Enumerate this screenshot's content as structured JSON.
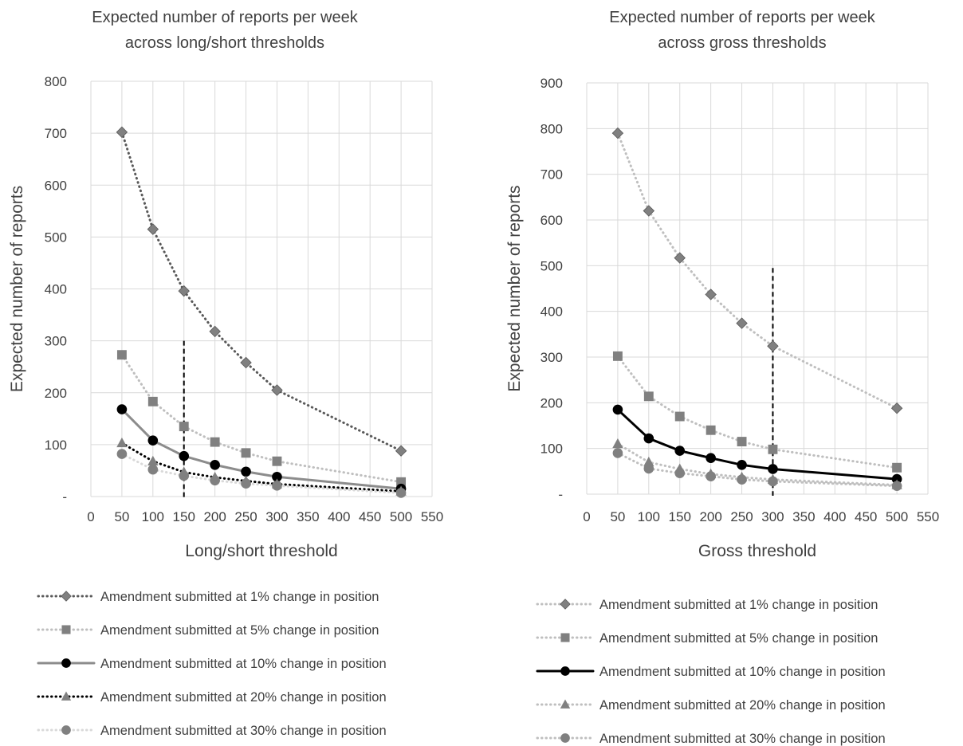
{
  "chart_data": [
    {
      "type": "line",
      "title_lines": [
        "Expected number of reports per week",
        "across long/short thresholds"
      ],
      "xlabel": "Long/short threshold",
      "ylabel": "Expected number of reports",
      "xlim": [
        0,
        550
      ],
      "ylim": [
        0,
        800
      ],
      "x_ticks": [
        0,
        50,
        100,
        150,
        200,
        250,
        300,
        350,
        400,
        450,
        500,
        550
      ],
      "y_ticks": [
        0,
        100,
        200,
        300,
        400,
        500,
        600,
        700,
        800
      ],
      "y_tick_labels": [
        "-",
        "100",
        "200",
        "300",
        "400",
        "500",
        "600",
        "700",
        "800"
      ],
      "grid": true,
      "reference_line": {
        "x": 150,
        "y_max": 300,
        "style": "dashed"
      },
      "x": [
        50,
        100,
        150,
        200,
        250,
        300,
        500
      ],
      "series": [
        {
          "name": "Amendment submitted at 1% change in position",
          "values": [
            702,
            515,
            396,
            318,
            258,
            205,
            88
          ],
          "marker": "diamond",
          "line": "dotted",
          "color": "#595959",
          "marker_color": "#808080"
        },
        {
          "name": "Amendment submitted at 5% change in position",
          "values": [
            273,
            183,
            135,
            105,
            84,
            68,
            28
          ],
          "marker": "square",
          "line": "dotted",
          "color": "#bfbfbf",
          "marker_color": "#808080"
        },
        {
          "name": "Amendment submitted at 10% change in position",
          "values": [
            168,
            108,
            78,
            61,
            48,
            38,
            15
          ],
          "marker": "circle",
          "line": "solid",
          "color": "#8c8c8c",
          "marker_color": "#000000"
        },
        {
          "name": "Amendment submitted at 20% change in position",
          "values": [
            103,
            68,
            47,
            37,
            30,
            24,
            10
          ],
          "marker": "triangle",
          "line": "dotted",
          "color": "#000000",
          "marker_color": "#808080"
        },
        {
          "name": "Amendment submitted at 30% change in position",
          "values": [
            82,
            52,
            40,
            31,
            25,
            21,
            7
          ],
          "marker": "circle",
          "line": "dotted",
          "color": "#d9d9d9",
          "marker_color": "#808080"
        }
      ],
      "legend_position": "bottom"
    },
    {
      "type": "line",
      "title_lines": [
        "Expected number of reports per week",
        "across gross thresholds"
      ],
      "xlabel": "Gross threshold",
      "ylabel": "Expected number of reports",
      "xlim": [
        0,
        550
      ],
      "ylim": [
        0,
        900
      ],
      "x_ticks": [
        0,
        50,
        100,
        150,
        200,
        250,
        300,
        350,
        400,
        450,
        500,
        550
      ],
      "y_ticks": [
        0,
        100,
        200,
        300,
        400,
        500,
        600,
        700,
        800,
        900
      ],
      "y_tick_labels": [
        "-",
        "100",
        "200",
        "300",
        "400",
        "500",
        "600",
        "700",
        "800",
        "900"
      ],
      "grid": true,
      "reference_line": {
        "x": 300,
        "y_max": 495,
        "style": "dashed"
      },
      "x": [
        50,
        100,
        150,
        200,
        250,
        300,
        500
      ],
      "series": [
        {
          "name": "Amendment submitted at 1% change in position",
          "values": [
            790,
            620,
            517,
            437,
            374,
            324,
            188
          ],
          "marker": "diamond",
          "line": "dotted",
          "color": "#bfbfbf",
          "marker_color": "#808080"
        },
        {
          "name": "Amendment submitted at 5% change in position",
          "values": [
            302,
            214,
            170,
            140,
            115,
            98,
            58
          ],
          "marker": "square",
          "line": "dotted",
          "color": "#bfbfbf",
          "marker_color": "#808080"
        },
        {
          "name": "Amendment submitted at 10% change in position",
          "values": [
            185,
            122,
            95,
            79,
            64,
            55,
            33
          ],
          "marker": "circle",
          "line": "solid",
          "color": "#000000",
          "marker_color": "#000000"
        },
        {
          "name": "Amendment submitted at 20% change in position",
          "values": [
            110,
            70,
            55,
            44,
            37,
            32,
            20
          ],
          "marker": "triangle",
          "line": "dotted",
          "color": "#bfbfbf",
          "marker_color": "#808080"
        },
        {
          "name": "Amendment submitted at 30% change in position",
          "values": [
            90,
            56,
            46,
            39,
            32,
            28,
            18
          ],
          "marker": "circle",
          "line": "dotted",
          "color": "#bfbfbf",
          "marker_color": "#808080"
        }
      ],
      "legend_position": "bottom"
    }
  ]
}
